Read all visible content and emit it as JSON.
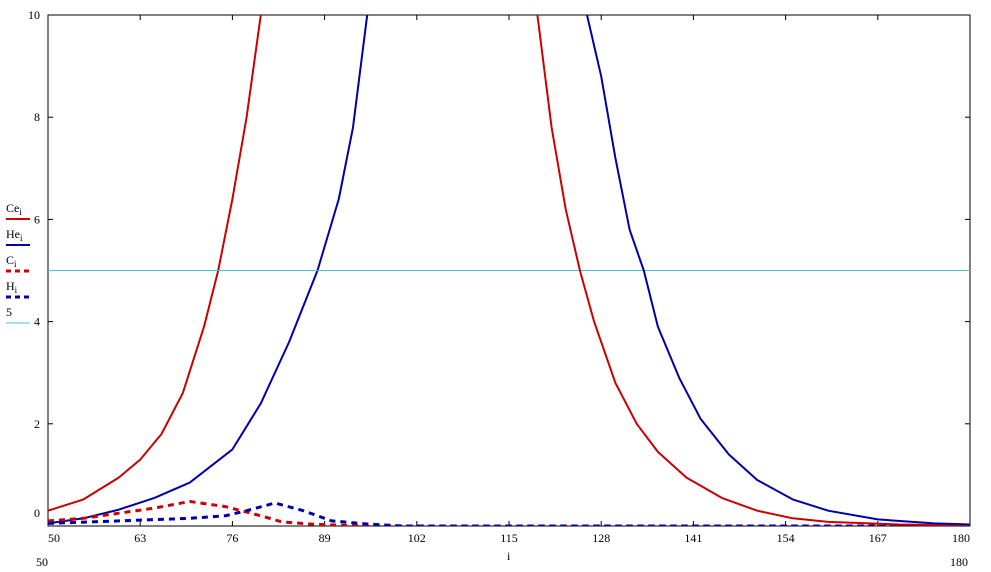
{
  "chart_data": {
    "type": "line",
    "xlabel": "i",
    "xlim": [
      50,
      180
    ],
    "ylim": [
      0,
      10
    ],
    "x_ticks": [
      50,
      63,
      76,
      89,
      102,
      115,
      128,
      141,
      154,
      167,
      180
    ],
    "y_ticks": [
      0,
      2,
      4,
      6,
      8,
      10
    ],
    "x_range_labels": [
      "50",
      "180"
    ],
    "y_range_labels": [
      "0",
      "10"
    ],
    "grid": false,
    "legend_placement": "left",
    "series": [
      {
        "name": "Ce",
        "subscript": "i",
        "color": "#cc0000",
        "dash": "solid",
        "points": [
          [
            50,
            0.3
          ],
          [
            55,
            0.52
          ],
          [
            60,
            0.95
          ],
          [
            63,
            1.3
          ],
          [
            66,
            1.8
          ],
          [
            69,
            2.6
          ],
          [
            72,
            3.9
          ],
          [
            74,
            5.0
          ],
          [
            76,
            6.4
          ],
          [
            78,
            8.0
          ],
          [
            80,
            10.0
          ]
        ]
      },
      {
        "name": "He",
        "subscript": "i",
        "color": "#0000aa",
        "dash": "solid",
        "points": [
          [
            50,
            0.05
          ],
          [
            55,
            0.15
          ],
          [
            60,
            0.32
          ],
          [
            65,
            0.55
          ],
          [
            70,
            0.85
          ],
          [
            76,
            1.5
          ],
          [
            80,
            2.4
          ],
          [
            84,
            3.6
          ],
          [
            88,
            5.0
          ],
          [
            91,
            6.4
          ],
          [
            93,
            7.8
          ],
          [
            95,
            10.0
          ]
        ]
      },
      {
        "name": "C",
        "subscript": "i",
        "color": "#cc0000",
        "dash": "dashed",
        "points": [
          [
            50,
            0.1
          ],
          [
            55,
            0.15
          ],
          [
            60,
            0.25
          ],
          [
            65,
            0.35
          ],
          [
            70,
            0.48
          ],
          [
            75,
            0.38
          ],
          [
            80,
            0.2
          ],
          [
            83,
            0.08
          ],
          [
            88,
            0.03
          ],
          [
            95,
            0.0
          ],
          [
            180,
            0.0
          ]
        ]
      },
      {
        "name": "H",
        "subscript": "i",
        "color": "#0000aa",
        "dash": "dashed",
        "points": [
          [
            50,
            0.05
          ],
          [
            60,
            0.1
          ],
          [
            70,
            0.15
          ],
          [
            75,
            0.2
          ],
          [
            78,
            0.3
          ],
          [
            82,
            0.45
          ],
          [
            86,
            0.3
          ],
          [
            90,
            0.1
          ],
          [
            95,
            0.04
          ],
          [
            100,
            0.0
          ],
          [
            180,
            0.0
          ]
        ]
      },
      {
        "name": "5",
        "subscript": "",
        "color": "#40c8d0",
        "dash": "solid",
        "points": [
          [
            50,
            5
          ],
          [
            180,
            5
          ]
        ]
      },
      {
        "name": "Ce",
        "subscript": "i",
        "color": "#cc0000",
        "dash": "solid",
        "segment_of": "Ce",
        "points": [
          [
            119,
            10.0
          ],
          [
            121,
            7.8
          ],
          [
            123,
            6.2
          ],
          [
            125,
            5.0
          ],
          [
            127,
            4.0
          ],
          [
            130,
            2.8
          ],
          [
            133,
            2.0
          ],
          [
            136,
            1.45
          ],
          [
            140,
            0.95
          ],
          [
            145,
            0.55
          ],
          [
            150,
            0.3
          ],
          [
            155,
            0.15
          ],
          [
            160,
            0.08
          ],
          [
            170,
            0.03
          ],
          [
            180,
            0.01
          ]
        ]
      },
      {
        "name": "He",
        "subscript": "i",
        "color": "#0000aa",
        "dash": "solid",
        "segment_of": "He",
        "points": [
          [
            126,
            10.0
          ],
          [
            128,
            8.8
          ],
          [
            130,
            7.2
          ],
          [
            132,
            5.8
          ],
          [
            134,
            5.0
          ],
          [
            136,
            3.9
          ],
          [
            139,
            2.9
          ],
          [
            142,
            2.1
          ],
          [
            146,
            1.4
          ],
          [
            150,
            0.9
          ],
          [
            155,
            0.52
          ],
          [
            160,
            0.3
          ],
          [
            167,
            0.13
          ],
          [
            175,
            0.05
          ],
          [
            180,
            0.03
          ]
        ]
      }
    ]
  }
}
